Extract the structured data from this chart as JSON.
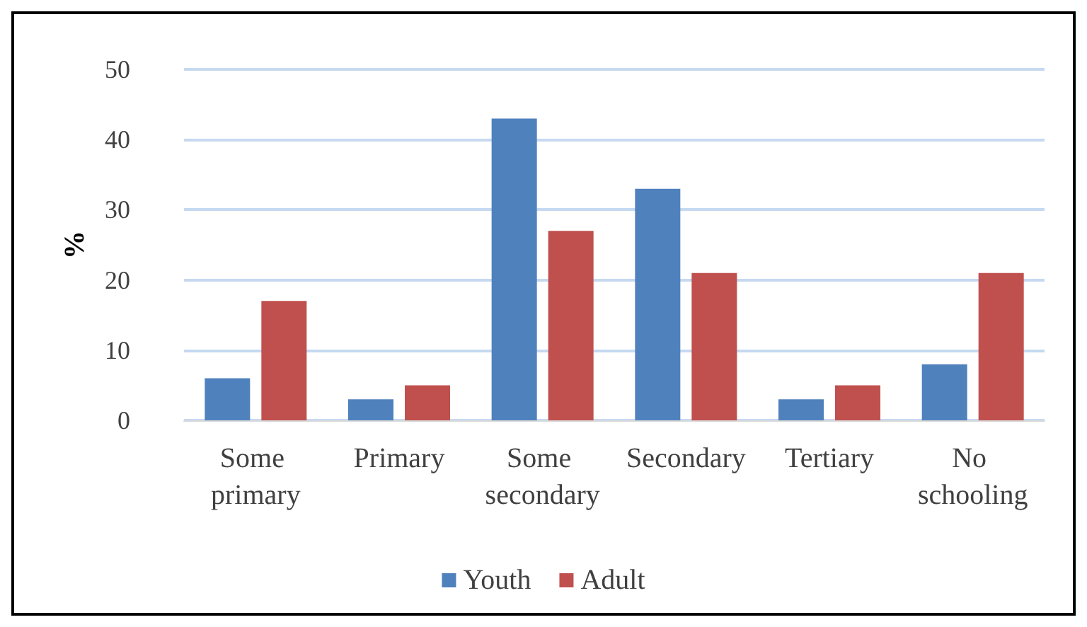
{
  "chart_data": {
    "type": "bar",
    "ylabel": "%",
    "categories": [
      "Some primary",
      "Primary",
      "Some secondary",
      "Secondary",
      "Tertiary",
      "No schooling"
    ],
    "series": [
      {
        "name": "Youth",
        "color": "#4f81bd",
        "values": [
          6,
          3,
          43,
          33,
          3,
          8
        ]
      },
      {
        "name": "Adult",
        "color": "#c0504d",
        "values": [
          17,
          5,
          27,
          21,
          5,
          21
        ]
      }
    ],
    "ylim": [
      0,
      50
    ],
    "yticks": [
      0,
      10,
      20,
      30,
      40,
      50
    ],
    "grid": "y",
    "legend": "bottom"
  }
}
